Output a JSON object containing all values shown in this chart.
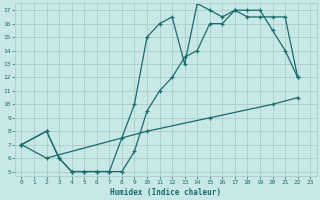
{
  "xlabel": "Humidex (Indice chaleur)",
  "bg_color": "#c8e8e8",
  "grid_color": "#b0d0d0",
  "line_color": "#1a6b6b",
  "xlim": [
    -0.5,
    23.5
  ],
  "ylim": [
    4.7,
    17.5
  ],
  "xticks": [
    0,
    1,
    2,
    3,
    4,
    5,
    6,
    7,
    8,
    9,
    10,
    11,
    12,
    13,
    14,
    15,
    16,
    17,
    18,
    19,
    20,
    21,
    22,
    23
  ],
  "yticks": [
    5,
    6,
    7,
    8,
    9,
    10,
    11,
    12,
    13,
    14,
    15,
    16,
    17
  ],
  "line1_x": [
    0,
    2,
    3,
    4,
    5,
    6,
    7,
    8,
    9,
    10,
    11,
    12,
    13,
    14,
    15,
    16,
    17,
    18,
    19,
    20,
    21,
    22
  ],
  "line1_y": [
    7,
    8,
    6,
    5,
    5,
    5,
    5,
    7.5,
    10,
    15,
    16,
    16.5,
    13,
    17.5,
    17,
    16.5,
    17,
    17,
    17,
    15.5,
    14,
    12
  ],
  "line2_x": [
    0,
    2,
    3,
    4,
    5,
    6,
    7,
    8,
    9,
    10,
    11,
    12,
    13,
    14,
    15,
    16,
    17,
    18,
    19,
    20,
    21,
    22
  ],
  "line2_y": [
    7,
    8,
    6,
    5,
    5,
    5,
    5,
    5,
    6.5,
    9.5,
    11,
    12,
    13.5,
    14,
    16,
    16,
    17,
    16.5,
    16.5,
    16.5,
    16.5,
    12
  ],
  "line3_x": [
    0,
    2,
    10,
    15,
    20,
    22
  ],
  "line3_y": [
    7,
    6,
    8,
    9,
    10,
    10.5
  ]
}
